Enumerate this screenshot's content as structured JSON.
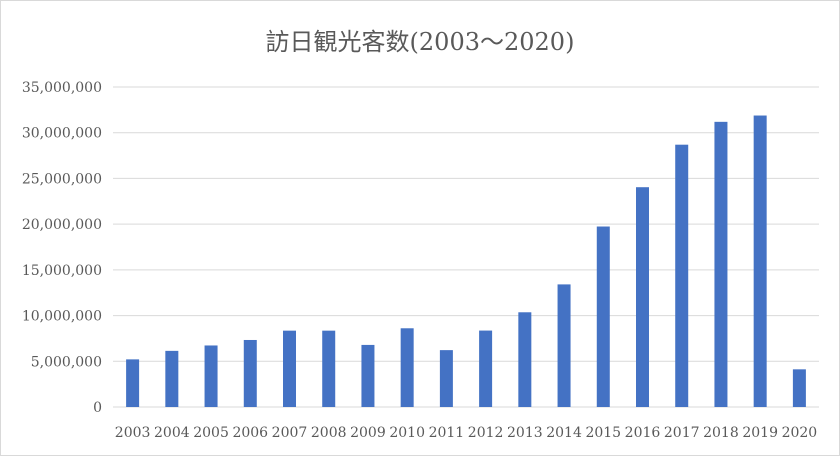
{
  "chart_data": {
    "type": "bar",
    "title": "訪日観光客数(2003～2020)",
    "xlabel": "",
    "ylabel": "",
    "categories": [
      "2003",
      "2004",
      "2005",
      "2006",
      "2007",
      "2008",
      "2009",
      "2010",
      "2011",
      "2012",
      "2013",
      "2014",
      "2015",
      "2016",
      "2017",
      "2018",
      "2019",
      "2020"
    ],
    "values": [
      5210000,
      6140000,
      6730000,
      7330000,
      8350000,
      8350000,
      6790000,
      8610000,
      6220000,
      8360000,
      10360000,
      13410000,
      19740000,
      24040000,
      28690000,
      31190000,
      31880000,
      4120000
    ],
    "ylim": [
      0,
      35000000
    ],
    "yticks": [
      0,
      5000000,
      10000000,
      15000000,
      20000000,
      25000000,
      30000000,
      35000000
    ],
    "ytick_labels": [
      "0",
      "5,000,000",
      "10,000,000",
      "15,000,000",
      "20,000,000",
      "25,000,000",
      "30,000,000",
      "35,000,000"
    ],
    "grid": true,
    "legend": "none",
    "colors": {
      "bar": "#4472C4",
      "grid": "#d9d9d9",
      "text": "#595959"
    }
  }
}
